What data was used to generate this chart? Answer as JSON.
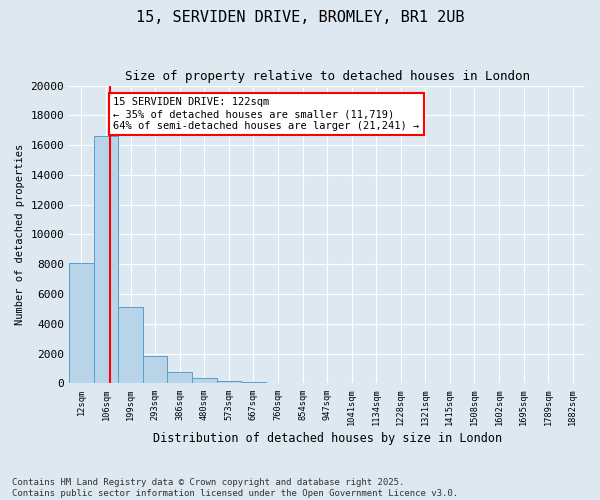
{
  "title": "15, SERVIDEN DRIVE, BROMLEY, BR1 2UB",
  "subtitle": "Size of property relative to detached houses in London",
  "xlabel": "Distribution of detached houses by size in London",
  "ylabel": "Number of detached properties",
  "bar_values": [
    8100,
    16600,
    5100,
    1850,
    750,
    350,
    175,
    100,
    50,
    30,
    15,
    10,
    8,
    5,
    4,
    3,
    2,
    2,
    1,
    1
  ],
  "bin_labels": [
    "12sqm",
    "106sqm",
    "199sqm",
    "293sqm",
    "386sqm",
    "480sqm",
    "573sqm",
    "667sqm",
    "760sqm",
    "854sqm",
    "947sqm",
    "1041sqm",
    "1134sqm",
    "1228sqm",
    "1321sqm",
    "1415sqm",
    "1508sqm",
    "1602sqm",
    "1695sqm",
    "1789sqm"
  ],
  "bar_color": "#b8d4e8",
  "bar_edge_color": "#5a9ec9",
  "red_line_x": 1.15,
  "annotation_text": "15 SERVIDEN DRIVE: 122sqm\n← 35% of detached houses are smaller (11,719)\n64% of semi-detached houses are larger (21,241) →",
  "annotation_box_color": "#ffffff",
  "annotation_box_edge_color": "red",
  "ylim": [
    0,
    20000
  ],
  "yticks": [
    0,
    2000,
    4000,
    6000,
    8000,
    10000,
    12000,
    14000,
    16000,
    18000,
    20000
  ],
  "background_color": "#dde8f0",
  "footer_text": "Contains HM Land Registry data © Crown copyright and database right 2025.\nContains public sector information licensed under the Open Government Licence v3.0.",
  "title_fontsize": 11,
  "subtitle_fontsize": 9,
  "annotation_fontsize": 7.5,
  "footer_fontsize": 6.5,
  "extra_xlabel": "1882sqm"
}
